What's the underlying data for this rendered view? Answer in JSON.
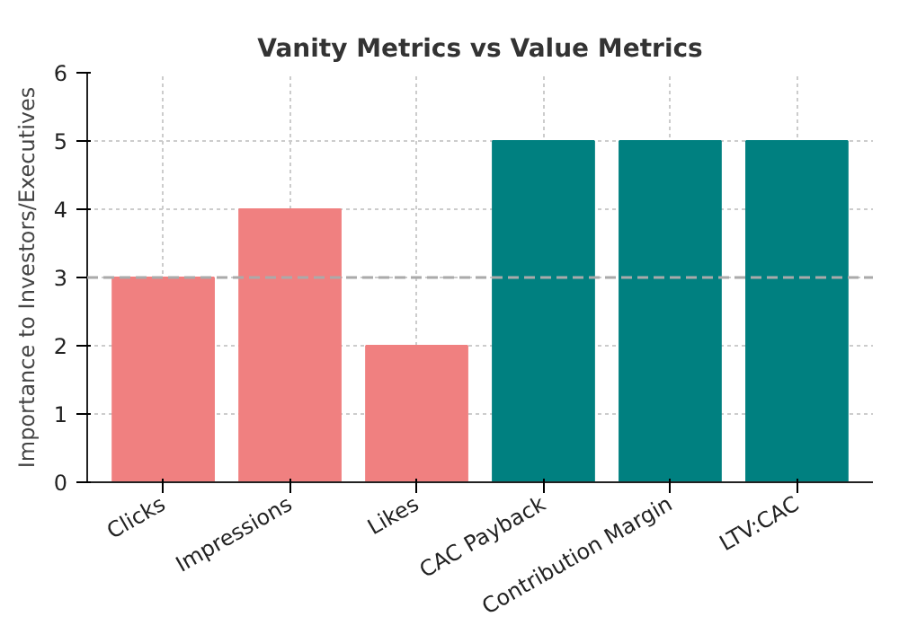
{
  "chart_data": {
    "type": "bar",
    "title": "Vanity Metrics vs Value Metrics",
    "ylabel": "Importance to Investors/Executives",
    "categories": [
      "Clicks",
      "Impressions",
      "Likes",
      "CAC Payback",
      "Contribution Margin",
      "LTV:CAC"
    ],
    "values": [
      3,
      4,
      2,
      5,
      5,
      5
    ],
    "colors": [
      "#f08080",
      "#f08080",
      "#f08080",
      "#008080",
      "#008080",
      "#008080"
    ],
    "ylim": [
      0,
      6
    ],
    "yticks": [
      0,
      1,
      2,
      3,
      4,
      5,
      6
    ],
    "grid": true,
    "ref_lines": [
      {
        "axis": "y",
        "value": 3,
        "color": "#aaaaaa",
        "line_style": "dashed"
      }
    ]
  }
}
